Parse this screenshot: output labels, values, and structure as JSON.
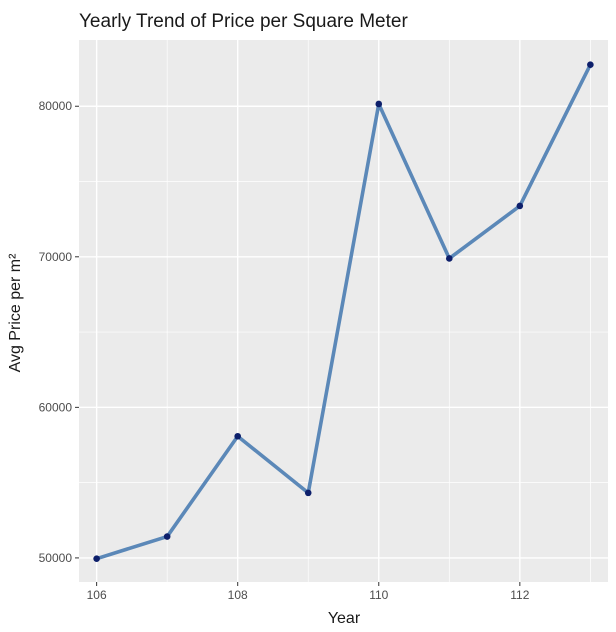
{
  "chart_data": {
    "type": "line",
    "title": "Yearly Trend of Price per Square Meter",
    "xlabel": "Year",
    "ylabel": "Avg Price per m²",
    "x": [
      106,
      107,
      108,
      109,
      110,
      111,
      112,
      113
    ],
    "series": [
      {
        "values": [
          49950,
          51420,
          58080,
          54320,
          80150,
          69890,
          73380,
          82760
        ]
      }
    ],
    "xlim": [
      105.75,
      113.25
    ],
    "ylim": [
      48400,
      84400
    ],
    "xticks": [
      106,
      108,
      110,
      112
    ],
    "xtick_labels": [
      "106",
      "108",
      "110",
      "112"
    ],
    "yticks": [
      50000,
      60000,
      70000,
      80000
    ],
    "ytick_labels": [
      "50000",
      "60000",
      "70000",
      "80000"
    ],
    "grid": true,
    "legend": "none",
    "colors": {
      "panel": "#ebebeb",
      "grid_major": "#ffffff",
      "line": "#5b88b8",
      "point": "#0d1f6b",
      "tick": "#333333"
    }
  }
}
